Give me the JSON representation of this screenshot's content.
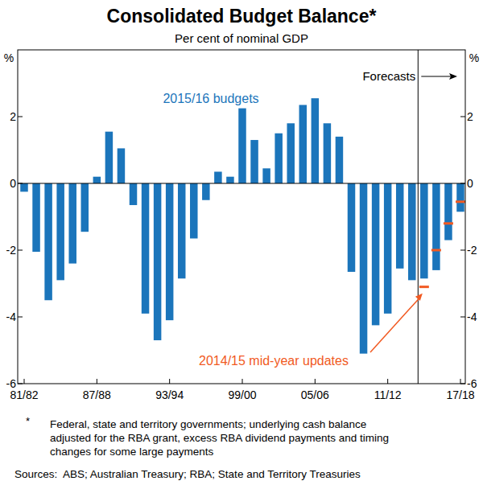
{
  "chart_data": {
    "type": "bar",
    "title": "Consolidated Budget Balance*",
    "subtitle": "Per cent of nominal GDP",
    "y_label": "%",
    "categories": [
      "81/82",
      null,
      null,
      null,
      null,
      null,
      "87/88",
      null,
      null,
      null,
      null,
      null,
      "93/94",
      null,
      null,
      null,
      null,
      null,
      "99/00",
      null,
      null,
      null,
      null,
      null,
      "05/06",
      null,
      null,
      null,
      null,
      null,
      "11/12",
      null,
      null,
      null,
      null,
      null,
      "17/18"
    ],
    "series": [
      {
        "name": "2015/16 budgets",
        "color": "#1b75bb",
        "type": "bar",
        "values": [
          -0.25,
          -2.05,
          -3.5,
          -2.9,
          -2.4,
          -1.45,
          0.2,
          1.55,
          1.05,
          -0.65,
          -3.9,
          -4.7,
          -4.1,
          -2.85,
          -1.65,
          -0.5,
          0.35,
          0.2,
          2.25,
          1.3,
          0.45,
          1.5,
          1.8,
          2.35,
          2.55,
          1.8,
          1.4,
          -2.65,
          -5.1,
          -4.25,
          -3.9,
          -2.55,
          -2.9,
          -2.85,
          -2.6,
          -1.7,
          -0.85
        ]
      },
      {
        "name": "2014/15 mid-year updates",
        "color": "#f15a22",
        "type": "scatter",
        "marker": "dash",
        "values": [
          null,
          null,
          null,
          null,
          null,
          null,
          null,
          null,
          null,
          null,
          null,
          null,
          null,
          null,
          null,
          null,
          null,
          null,
          null,
          null,
          null,
          null,
          null,
          null,
          null,
          null,
          null,
          null,
          null,
          null,
          null,
          null,
          null,
          -3.1,
          -2.0,
          -1.2,
          -0.55
        ]
      }
    ],
    "ylim": [
      -6,
      4
    ],
    "yticks": [
      -6,
      -4,
      -2,
      0,
      2
    ],
    "grid": false,
    "annotations": [
      "Forecasts"
    ],
    "footnote_marker": "*",
    "footnote": [
      "Federal, state and territory governments; underlying cash balance",
      "adjusted for the RBA grant, excess RBA dividend payments and timing",
      "changes for some large payments"
    ],
    "source": "Sources:  ABS; Australian Treasury; RBA; State and Territory Treasuries"
  }
}
